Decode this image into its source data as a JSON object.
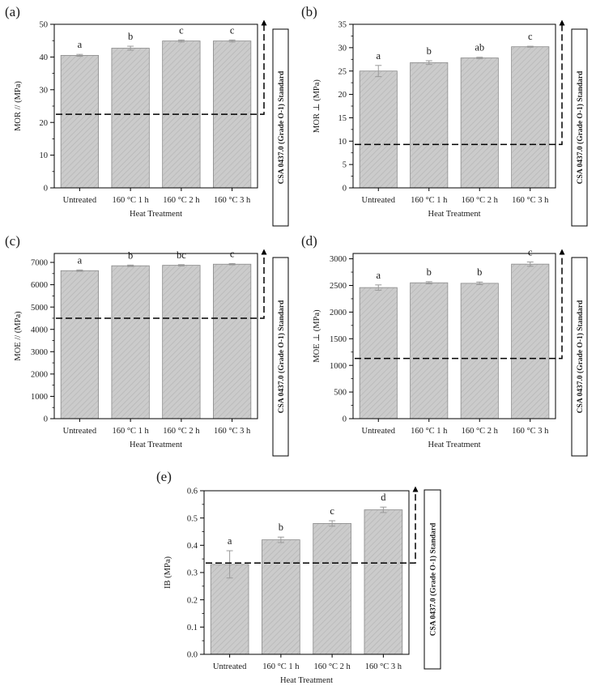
{
  "figure": {
    "panels_order": [
      "a",
      "b",
      "c",
      "d",
      "e"
    ]
  },
  "chart_data": [
    {
      "id": "a",
      "panel_label": "(a)",
      "type": "bar",
      "categories": [
        "Untreated",
        "160 °C 1 h",
        "160 °C 2 h",
        "160 °C 3 h"
      ],
      "values": [
        40.5,
        42.7,
        44.9,
        44.9
      ],
      "errors": [
        0.3,
        0.6,
        0.3,
        0.3
      ],
      "letters": [
        "a",
        "b",
        "c",
        "c"
      ],
      "xlabel": "Heat Treatment",
      "ylabel": "MOR // (MPa)",
      "ylim": [
        0,
        50
      ],
      "yticks": [
        0,
        10,
        20,
        30,
        40,
        50
      ],
      "ytick_labels": [
        "0",
        "10",
        "20",
        "30",
        "40",
        "50"
      ],
      "ytick_minor_step": 5,
      "standard_value": 22.5,
      "standard_label": "CSA 0437.0 (Grade O-1) Standard",
      "bar_color": "#cbcbcb"
    },
    {
      "id": "b",
      "panel_label": "(b)",
      "type": "bar",
      "categories": [
        "Untreated",
        "160 °C 1 h",
        "160 °C 2 h",
        "160 °C 3 h"
      ],
      "values": [
        25.0,
        26.8,
        27.8,
        30.2
      ],
      "errors": [
        1.2,
        0.4,
        0.15,
        0.1
      ],
      "letters": [
        "a",
        "b",
        "ab",
        "c"
      ],
      "xlabel": "Heat Treatment",
      "ylabel": "MOR ⊥ (MPa)",
      "ylim": [
        0,
        35
      ],
      "yticks": [
        0,
        5,
        10,
        15,
        20,
        25,
        30,
        35
      ],
      "ytick_labels": [
        "0",
        "5",
        "10",
        "15",
        "20",
        "25",
        "30",
        "35"
      ],
      "ytick_minor_step": 2.5,
      "standard_value": 9.3,
      "standard_label": "CSA 0437.0 (Grade O-1) Standard",
      "bar_color": "#cbcbcb"
    },
    {
      "id": "c",
      "panel_label": "(c)",
      "type": "bar",
      "categories": [
        "Untreated",
        "160 °C 1 h",
        "160 °C 2 h",
        "160 °C 3 h"
      ],
      "values": [
        6630,
        6850,
        6870,
        6920
      ],
      "errors": [
        30,
        30,
        30,
        30
      ],
      "letters": [
        "a",
        "b",
        "bc",
        "c"
      ],
      "xlabel": "Heat Treatment",
      "ylabel": "MOE // (MPa)",
      "ylim": [
        0,
        7400
      ],
      "yticks": [
        0,
        1000,
        2000,
        3000,
        4000,
        5000,
        6000,
        7000
      ],
      "ytick_labels": [
        "0",
        "1000",
        "2000",
        "3000",
        "4000",
        "5000",
        "6000",
        "7000"
      ],
      "ytick_minor_step": 500,
      "standard_value": 4500,
      "standard_label": "CSA 0437.0 (Grade O-1) Standard",
      "bar_color": "#cbcbcb"
    },
    {
      "id": "d",
      "panel_label": "(d)",
      "type": "bar",
      "categories": [
        "Untreated",
        "160 °C 1 h",
        "160 °C 2 h",
        "160 °C 3 h"
      ],
      "values": [
        2460,
        2550,
        2540,
        2900
      ],
      "errors": [
        50,
        20,
        25,
        40
      ],
      "letters": [
        "a",
        "b",
        "b",
        "c"
      ],
      "xlabel": "Heat Treatment",
      "ylabel": "MOE ⊥ (MPa)",
      "ylim": [
        0,
        3100
      ],
      "yticks": [
        0,
        500,
        1000,
        1500,
        2000,
        2500,
        3000
      ],
      "ytick_labels": [
        "0",
        "500",
        "1000",
        "1500",
        "2000",
        "2500",
        "3000"
      ],
      "ytick_minor_step": 250,
      "standard_value": 1130,
      "standard_label": "CSA 0437.0 (Grade O-1) Standard",
      "bar_color": "#cbcbcb"
    },
    {
      "id": "e",
      "panel_label": "(e)",
      "type": "bar",
      "categories": [
        "Untreated",
        "160 °C 1 h",
        "160 °C 2 h",
        "160 °C 3 h"
      ],
      "values": [
        0.33,
        0.42,
        0.48,
        0.53
      ],
      "errors": [
        0.05,
        0.01,
        0.01,
        0.01
      ],
      "letters": [
        "a",
        "b",
        "c",
        "d"
      ],
      "xlabel": "Heat Treatment",
      "ylabel": "IB (MPa)",
      "ylim": [
        0,
        0.6
      ],
      "yticks": [
        0,
        0.1,
        0.2,
        0.3,
        0.4,
        0.5,
        0.6
      ],
      "ytick_labels": [
        "0.0",
        "0.1",
        "0.2",
        "0.3",
        "0.4",
        "0.5",
        "0.6"
      ],
      "ytick_minor_step": 0.05,
      "standard_value": 0.335,
      "standard_label": "CSA 0437.0 (Grade O-1) Standard",
      "bar_color": "#cbcbcb"
    }
  ]
}
